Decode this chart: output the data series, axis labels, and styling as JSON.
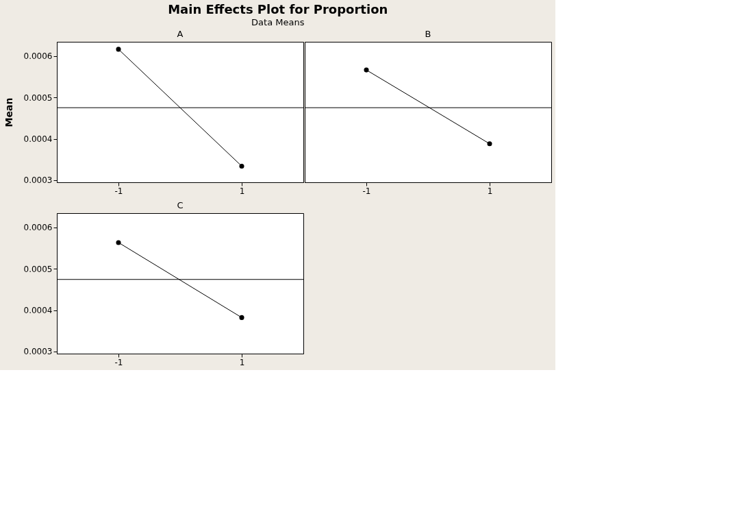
{
  "chart_data": [
    {
      "type": "other",
      "title": "Main Effects Plot for Proportion",
      "subtitle": "Data Means"
    },
    {
      "type": "line",
      "title": "A",
      "ylabel": "Mean",
      "categories": [
        "-1",
        "1"
      ],
      "values": [
        0.000616,
        0.000334
      ],
      "color": "#000000",
      "marker": "circle",
      "ylim": [
        0.000295,
        0.000634
      ],
      "yticks": [
        0.0003,
        0.0004,
        0.0005,
        0.0006
      ],
      "ref_lines": [
        {
          "axis": "y",
          "value": 0.000475,
          "color": "#000000"
        }
      ],
      "grid": false
    },
    {
      "type": "line",
      "title": "B",
      "categories": [
        "-1",
        "1"
      ],
      "values": [
        0.000566,
        0.000388
      ],
      "color": "#000000",
      "marker": "circle",
      "ylim": [
        0.000295,
        0.000634
      ],
      "yticks": [
        0.0003,
        0.0004,
        0.0005,
        0.0006
      ],
      "ref_lines": [
        {
          "axis": "y",
          "value": 0.000475,
          "color": "#000000"
        }
      ],
      "grid": false,
      "tick_labels": "x"
    },
    {
      "type": "line",
      "title": "C",
      "categories": [
        "-1",
        "1"
      ],
      "values": [
        0.000563,
        0.000382
      ],
      "color": "#000000",
      "marker": "circle",
      "ylim": [
        0.000295,
        0.000634
      ],
      "yticks": [
        0.0003,
        0.0004,
        0.0005,
        0.0006
      ],
      "ref_lines": [
        {
          "axis": "y",
          "value": 0.000474,
          "color": "#000000"
        }
      ],
      "grid": false
    }
  ]
}
